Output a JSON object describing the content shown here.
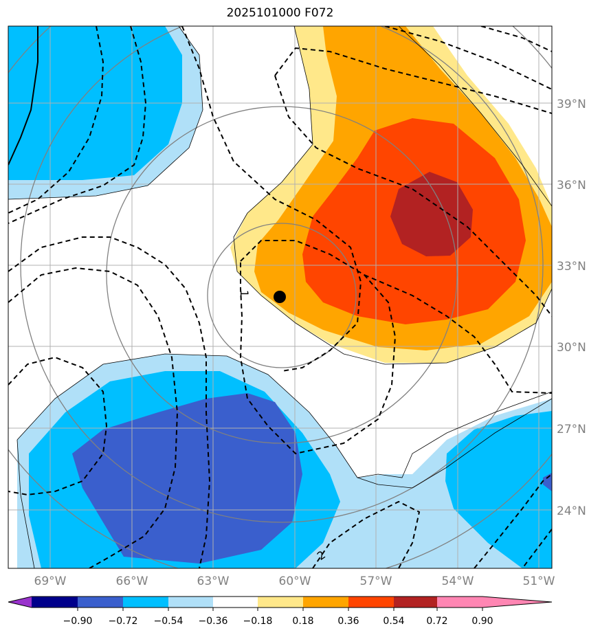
{
  "title": "2025101000 F072",
  "map": {
    "lat_labels": [
      "39°N",
      "36°N",
      "33°N",
      "30°N",
      "27°N",
      "24°N"
    ],
    "lon_labels": [
      "69°W",
      "66°W",
      "63°W",
      "60°W",
      "57°W",
      "54°W",
      "51°W"
    ],
    "contour_labels": [
      "1",
      "2"
    ],
    "storm_marker": {
      "lon": -60.7,
      "lat": 31.8
    }
  },
  "colorbar": {
    "levels": [
      "−0.90",
      "−0.72",
      "−0.54",
      "−0.36",
      "−0.18",
      "0.18",
      "0.36",
      "0.54",
      "0.72",
      "0.90"
    ],
    "colors": [
      "#9932cc",
      "#00008b",
      "#3a5fcd",
      "#00bfff",
      "#b0e0f8",
      "#ffffff",
      "#ffe88a",
      "#ffa500",
      "#ff4500",
      "#b22222",
      "#ff86b3"
    ]
  }
}
